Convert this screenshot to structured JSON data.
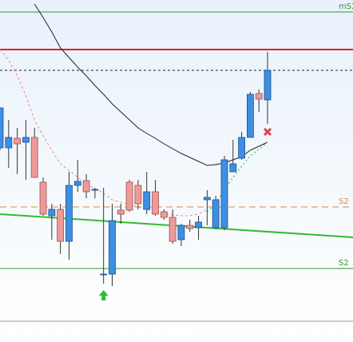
{
  "chart_data": {
    "type": "candlestick",
    "x": [
      0,
      1,
      2,
      3,
      4,
      5,
      6,
      7,
      8,
      9,
      10,
      11,
      12,
      13,
      14,
      15,
      16,
      17,
      18,
      19,
      20,
      21,
      22,
      23,
      24,
      25,
      26,
      27,
      28,
      29,
      30,
      31
    ],
    "xlim": [
      0,
      40.9
    ],
    "ylim": [
      0,
      428
    ],
    "open": [
      243,
      243,
      255,
      250,
      256,
      200,
      158,
      166,
      126,
      196,
      202,
      191,
      85,
      85,
      165,
      200,
      196,
      166,
      188,
      163,
      156,
      128,
      146,
      143,
      178,
      143,
      143,
      213,
      230,
      256,
      311,
      303
    ],
    "high": [
      293,
      278,
      268,
      278,
      268,
      206,
      173,
      173,
      213,
      228,
      210,
      193,
      193,
      173,
      173,
      203,
      203,
      213,
      203,
      166,
      166,
      148,
      153,
      158,
      190,
      183,
      233,
      253,
      263,
      313,
      316,
      363
    ],
    "low": [
      240,
      218,
      210,
      203,
      206,
      158,
      128,
      110,
      103,
      188,
      180,
      180,
      73,
      70,
      148,
      163,
      166,
      160,
      158,
      153,
      123,
      120,
      138,
      128,
      146,
      141,
      140,
      213,
      228,
      256,
      288,
      273
    ],
    "close": [
      293,
      256,
      248,
      256,
      206,
      160,
      166,
      126,
      196,
      201,
      188,
      191,
      85,
      152,
      160,
      165,
      173,
      188,
      160,
      156,
      126,
      146,
      142,
      150,
      181,
      178,
      228,
      223,
      256,
      310,
      304,
      340
    ],
    "colors": {
      "up": "#3d8fe6",
      "down": "#ee9a98"
    },
    "ma": {
      "color": "#222222",
      "values": [
        null,
        null,
        null,
        null,
        423,
        406,
        388,
        368,
        356,
        344,
        333,
        321,
        310,
        298,
        288,
        278,
        268,
        261,
        255,
        248,
        242,
        236,
        231,
        226,
        221,
        222,
        224,
        228,
        232,
        240,
        245,
        250
      ]
    },
    "trail": {
      "color": "#e88a8a",
      "values": [
        366,
        353,
        333,
        308,
        278,
        258,
        240,
        223,
        215,
        206,
        198,
        192,
        186,
        178,
        175,
        172,
        169,
        166,
        163,
        160,
        159,
        158,
        158,
        160,
        166,
        null,
        null,
        null,
        null,
        null,
        null,
        null
      ]
    },
    "projection": {
      "color": "#33cc33",
      "values": [
        null,
        null,
        null,
        null,
        null,
        null,
        null,
        null,
        null,
        null,
        null,
        null,
        null,
        null,
        null,
        null,
        null,
        null,
        null,
        null,
        null,
        null,
        null,
        null,
        163,
        173,
        191,
        206,
        220,
        233,
        241,
        250
      ]
    },
    "trendline": {
      "color": "#33bb33",
      "values": [
        160,
        131
      ]
    },
    "levels": [
      {
        "label": "mS2",
        "value": 413,
        "color": "#2e9a2e",
        "style": "solid"
      },
      {
        "value": 366,
        "color": "#dd2222",
        "style": "solid"
      },
      {
        "value": 340,
        "color": "#222222",
        "style": "dashed"
      },
      {
        "label": "S2",
        "value": 169,
        "color": "#e08a40",
        "style": "dashed"
      },
      {
        "label": "S2",
        "value": 92,
        "color": "#2e9a2e",
        "style": "solid"
      },
      {
        "value": 26,
        "color": "#999999",
        "style": "solid"
      }
    ],
    "markers": [
      {
        "kind": "cross",
        "x": 31,
        "value": 263,
        "color": "#e04444"
      },
      {
        "kind": "arrow-up",
        "x": 12,
        "value": 58,
        "color": "#33bb33"
      }
    ]
  }
}
